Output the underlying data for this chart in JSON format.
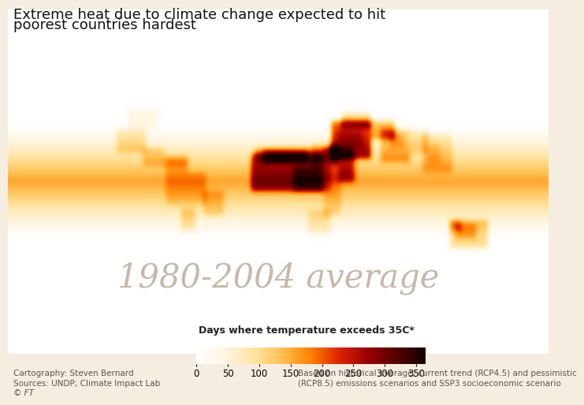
{
  "title_line1": "Extreme heat due to climate change expected to hit",
  "title_line2": "poorest countries hardest",
  "watermark_text": "1980-2004 average",
  "colorbar_label": "Days where temperature exceeds 35C*",
  "colorbar_ticks": [
    0,
    50,
    100,
    150,
    200,
    250,
    300,
    350
  ],
  "colorbar_colors": [
    "#FFFFFF",
    "#FFF5E0",
    "#FFE4A0",
    "#FFC050",
    "#FF8000",
    "#DD2200",
    "#990000",
    "#550000",
    "#150000"
  ],
  "footnote_left_1": "Cartography: Steven Bernard",
  "footnote_left_2": "Sources: UNDP; Climate Impact Lab",
  "footnote_left_3": "© FT",
  "footnote_right_1": "Based on historical average, current trend (RCP4.5) and pessimistic",
  "footnote_right_2": "(RCP8.5) emissions scenarios and SSP3 socioeconomic scenario",
  "background_color": "#F5EDE0",
  "ocean_color": "#F0E8D8",
  "land_base_color": "#EDE5D0",
  "border_color": "#BBBBBB",
  "title_fontsize": 13,
  "watermark_fontsize": 30,
  "watermark_color": "#C8B8AA",
  "footnote_fontsize": 7.5,
  "colorbar_label_fontsize": 9,
  "colorbar_tick_fontsize": 8.5
}
